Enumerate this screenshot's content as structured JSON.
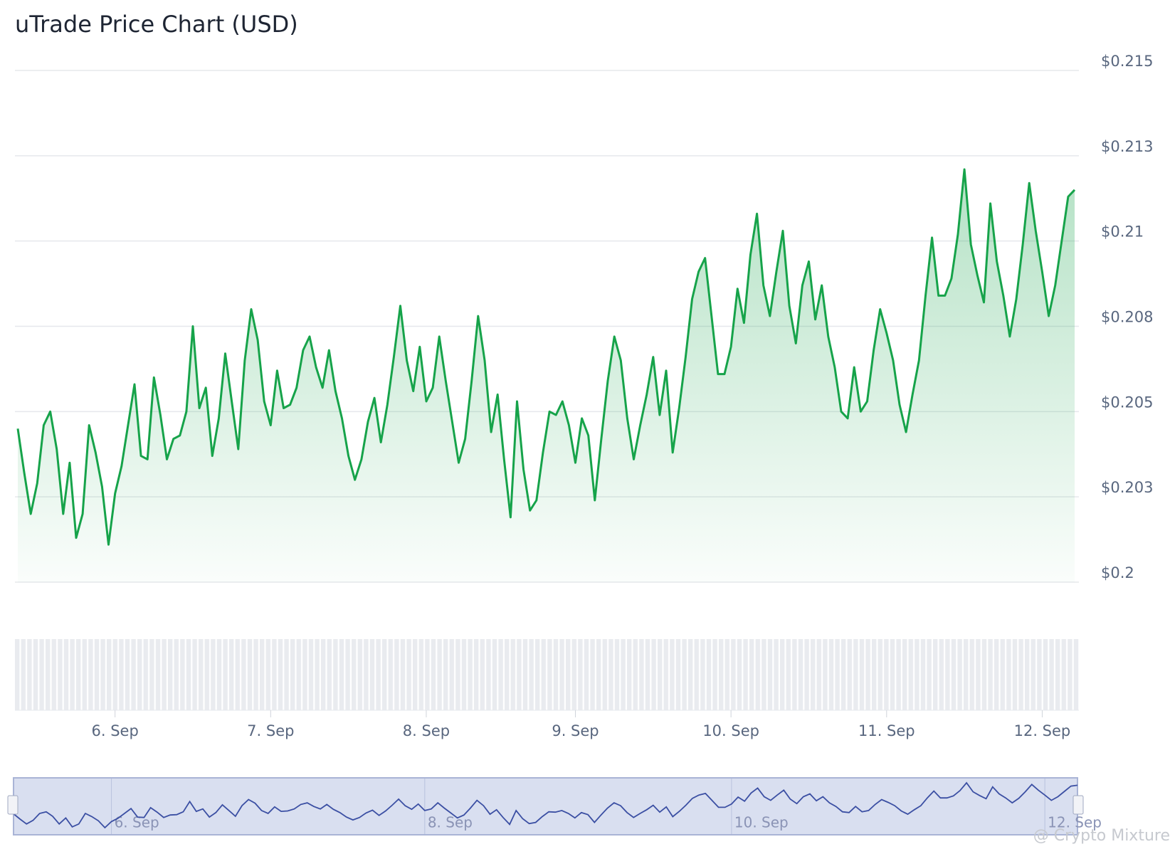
{
  "chart_data": {
    "type": "line",
    "title": "uTrade Price Chart (USD)",
    "categories": [
      null,
      null,
      null,
      null,
      null,
      null,
      null,
      null,
      null,
      null,
      null,
      null,
      null,
      null,
      null,
      "6. Sep",
      null,
      null,
      null,
      null,
      null,
      null,
      null,
      null,
      null,
      null,
      null,
      null,
      null,
      null,
      null,
      null,
      null,
      null,
      null,
      null,
      null,
      null,
      null,
      "7. Sep",
      null,
      null,
      null,
      null,
      null,
      null,
      null,
      null,
      null,
      null,
      null,
      null,
      null,
      null,
      null,
      null,
      null,
      null,
      null,
      null,
      null,
      null,
      null,
      "8. Sep",
      null,
      null,
      null,
      null,
      null,
      null,
      null,
      null,
      null,
      null,
      null,
      null,
      null,
      null,
      null,
      null,
      null,
      null,
      null,
      null,
      null,
      null,
      "9. Sep",
      null,
      null,
      null,
      null,
      null,
      null,
      null,
      null,
      null,
      null,
      null,
      null,
      null,
      null,
      null,
      null,
      null,
      null,
      null,
      null,
      null,
      null,
      null,
      "10. Sep",
      null,
      null,
      null,
      null,
      null,
      null,
      null,
      null,
      null,
      null,
      null,
      null,
      null,
      null,
      null,
      null,
      null,
      null,
      null,
      null,
      null,
      null,
      null,
      "11. Sep",
      null,
      null,
      null,
      null,
      null,
      null,
      null,
      null,
      null,
      null,
      null,
      null,
      null,
      null,
      null,
      null,
      null,
      null,
      null,
      null,
      null,
      null,
      null,
      "12. Sep",
      null,
      null,
      null,
      null,
      null
    ],
    "series": [
      {
        "name": "Price",
        "color": "#16a34a",
        "values": [
          0.2045,
          0.2032,
          0.202,
          0.2029,
          0.2046,
          0.205,
          0.2039,
          0.202,
          0.2035,
          0.2013,
          0.202,
          0.2046,
          0.2038,
          0.2028,
          0.2011,
          0.2026,
          0.2034,
          0.2046,
          0.2058,
          0.2037,
          0.2036,
          0.206,
          0.2049,
          0.2036,
          0.2042,
          0.2043,
          0.205,
          0.2075,
          0.2051,
          0.2057,
          0.2037,
          0.2048,
          0.2067,
          0.2053,
          0.2039,
          0.2065,
          0.208,
          0.2071,
          0.2053,
          0.2046,
          0.2062,
          0.2051,
          0.2052,
          0.2057,
          0.2068,
          0.2072,
          0.2063,
          0.2057,
          0.2068,
          0.2056,
          0.2048,
          0.2037,
          0.203,
          0.2036,
          0.2047,
          0.2054,
          0.2041,
          0.2052,
          0.2066,
          0.2081,
          0.2065,
          0.2056,
          0.2069,
          0.2053,
          0.2057,
          0.2072,
          0.2059,
          0.2047,
          0.2035,
          0.2042,
          0.2059,
          0.2078,
          0.2065,
          0.2044,
          0.2055,
          0.2036,
          0.2019,
          0.2053,
          0.2033,
          0.2021,
          0.2024,
          0.2038,
          0.205,
          0.2049,
          0.2053,
          0.2046,
          0.2035,
          0.2048,
          0.2043,
          0.2024,
          0.2042,
          0.2059,
          0.2072,
          0.2065,
          0.2048,
          0.2036,
          0.2046,
          0.2055,
          0.2066,
          0.2049,
          0.2062,
          0.2038,
          0.2051,
          0.2066,
          0.2083,
          0.2091,
          0.2095,
          0.2078,
          0.2061,
          0.2061,
          0.2069,
          0.2086,
          0.2076,
          0.2096,
          0.2108,
          0.2087,
          0.2078,
          0.2091,
          0.2103,
          0.2081,
          0.207,
          0.2087,
          0.2094,
          0.2077,
          0.2087,
          0.2072,
          0.2063,
          0.205,
          0.2048,
          0.2063,
          0.205,
          0.2053,
          0.2068,
          0.208,
          0.2073,
          0.2065,
          0.2052,
          0.2044,
          0.2055,
          0.2065,
          0.2084,
          0.2101,
          0.2084,
          0.2084,
          0.2089,
          0.2102,
          0.2121,
          0.2099,
          0.209,
          0.2082,
          0.2111,
          0.2094,
          0.2084,
          0.2072,
          0.2083,
          0.2099,
          0.2117,
          0.2103,
          0.2091,
          0.2078,
          0.2087,
          0.21,
          0.2113,
          0.2115
        ]
      }
    ],
    "ylim": [
      0.2,
      0.215
    ],
    "yticks": [
      {
        "value": 0.2,
        "label": "$0.2"
      },
      {
        "value": 0.2025,
        "label": "$0.203"
      },
      {
        "value": 0.205,
        "label": "$0.205"
      },
      {
        "value": 0.2075,
        "label": "$0.208"
      },
      {
        "value": 0.21,
        "label": "$0.21"
      },
      {
        "value": 0.2125,
        "label": "$0.213"
      },
      {
        "value": 0.215,
        "label": "$0.215"
      }
    ],
    "grid": true,
    "navigator_labels": [
      15,
      63,
      110,
      158
    ]
  },
  "watermark": "@ Crypto Mixture"
}
